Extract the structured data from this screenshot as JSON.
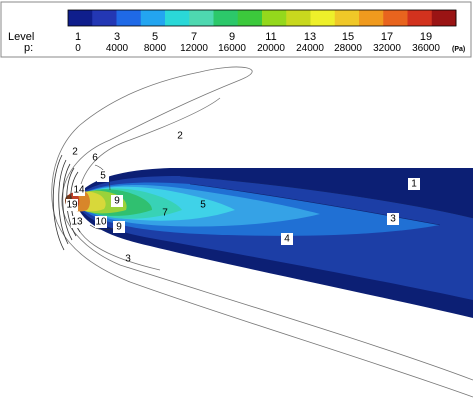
{
  "chart_data": {
    "type": "contour",
    "legend": {
      "level_label": "Level",
      "p_label": "p:",
      "unit": "(Pa)",
      "levels": [
        "1",
        "3",
        "5",
        "7",
        "9",
        "11",
        "13",
        "15",
        "17",
        "19"
      ],
      "pressures": [
        "0",
        "4000",
        "8000",
        "12000",
        "16000",
        "20000",
        "24000",
        "28000",
        "32000",
        "36000"
      ],
      "colors": [
        "#0f1e8c",
        "#2337b4",
        "#1f69e6",
        "#23a5f0",
        "#2ad8d8",
        "#4ed8b0",
        "#2cc86a",
        "#3cc93c",
        "#94d81c",
        "#c8d81e",
        "#eef02a",
        "#f0c828",
        "#f09a1e",
        "#e8641e",
        "#d2321e",
        "#9a1414"
      ]
    },
    "contour_labels": [
      "1",
      "2",
      "2",
      "3",
      "3",
      "4",
      "5",
      "5",
      "6",
      "7",
      "9",
      "9",
      "10",
      "13",
      "14",
      "19"
    ],
    "field_colors": {
      "far": "#0c1f74",
      "dark": "#1c3ea6",
      "mid": "#2070d4",
      "light": "#35a2e6",
      "cyan": "#3fd2e8",
      "teal": "#38d2b6",
      "green": "#30c070",
      "lime": "#9ad23a",
      "yellow": "#d8d83a",
      "orange": "#d8862a",
      "red": "#c0402a",
      "brown": "#7a3a1a"
    }
  }
}
